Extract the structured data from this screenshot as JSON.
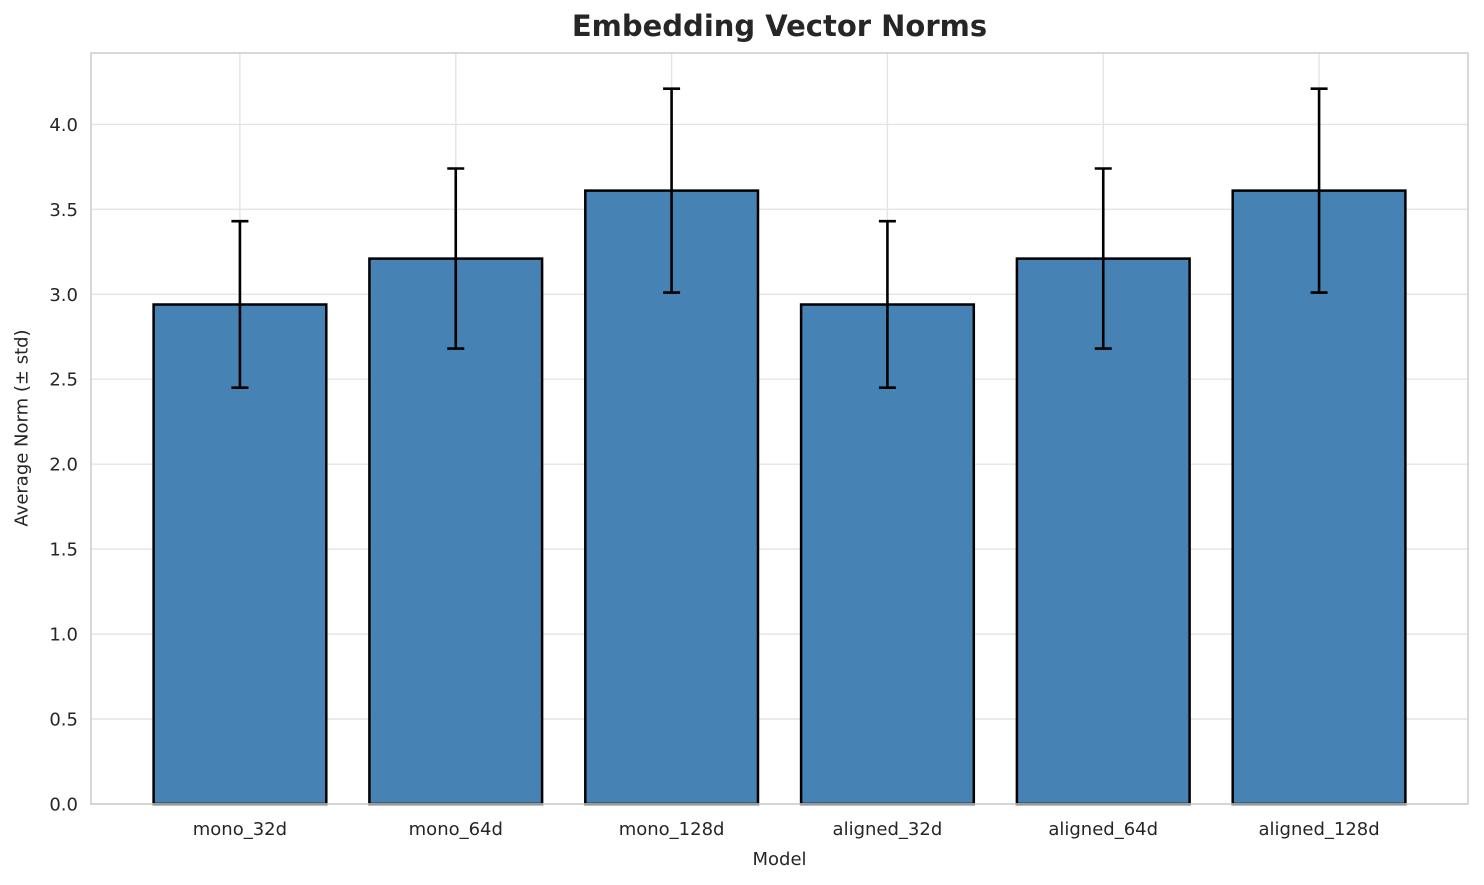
{
  "chart_data": {
    "type": "bar",
    "title": "Embedding Vector Norms",
    "xlabel": "Model",
    "ylabel": "Average Norm (± std)",
    "categories": [
      "mono_32d",
      "mono_64d",
      "mono_128d",
      "aligned_32d",
      "aligned_64d",
      "aligned_128d"
    ],
    "series": [
      {
        "name": "Average Norm",
        "values": [
          2.94,
          3.21,
          3.61,
          2.94,
          3.21,
          3.61
        ]
      }
    ],
    "error_bars": {
      "kind": "std",
      "values": [
        0.49,
        0.53,
        0.6,
        0.49,
        0.53,
        0.6
      ]
    },
    "yticks": [
      0.0,
      0.5,
      1.0,
      1.5,
      2.0,
      2.5,
      3.0,
      3.5,
      4.0
    ],
    "ytick_labels": [
      "0.0",
      "0.5",
      "1.0",
      "1.5",
      "2.0",
      "2.5",
      "3.0",
      "3.5",
      "4.0"
    ],
    "ylim": [
      0,
      4.42
    ],
    "xlim": [
      -0.69,
      5.69
    ],
    "grid": true,
    "legend": false,
    "colors": {
      "bar_fill": "#4682B4",
      "bar_edge": "#000000",
      "error_bar": "#000000",
      "grid": "#E4E4E4",
      "spine": "#CCCCCC",
      "text": "#262626",
      "background": "#FFFFFF"
    }
  }
}
